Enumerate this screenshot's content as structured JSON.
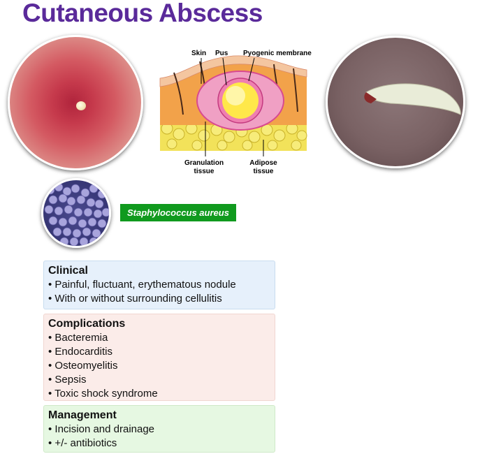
{
  "title": "Cutaneous Abscess",
  "diagram_labels": {
    "skin": "Skin",
    "pus": "Pus",
    "pyogenic_membrane": "Pyogenic membrane",
    "granulation_line1": "Granulation",
    "granulation_line2": "tissue",
    "adipose_line1": "Adipose",
    "adipose_line2": "tissue"
  },
  "organism": "Staphylococcus aureus",
  "sections": {
    "clinical": {
      "heading": "Clinical",
      "items": [
        "Painful, fluctuant, erythematous nodule",
        "With or without surrounding cellulitis"
      ]
    },
    "complications": {
      "heading": "Complications",
      "items": [
        "Bacteremia",
        "Endocarditis",
        "Osteomyelitis",
        "Sepsis",
        "Toxic shock syndrome"
      ]
    },
    "management": {
      "heading": "Management",
      "items": [
        "Incision and drainage",
        "+/- antibiotics"
      ]
    }
  },
  "colors": {
    "title": "#5a2a9a",
    "organism_badge": "#109a1e",
    "clinical_bg": "#e6f0fb",
    "complications_bg": "#fbece9",
    "management_bg": "#e6f8e2"
  }
}
